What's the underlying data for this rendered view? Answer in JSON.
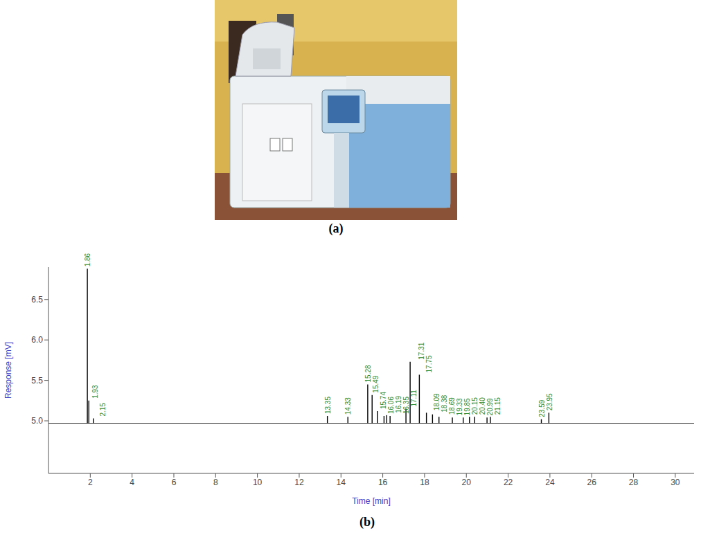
{
  "photo": {
    "caption": "(a)"
  },
  "chart_data": {
    "type": "chromatogram",
    "caption": "(b)",
    "x_label": "Time [min]",
    "y_label": "Response [mV]",
    "xlim": [
      0,
      30.9
    ],
    "xticks": [
      2,
      4,
      6,
      8,
      10,
      12,
      14,
      16,
      18,
      20,
      22,
      24,
      26,
      28,
      30
    ],
    "ylim": [
      4.35,
      6.9
    ],
    "yticks": [
      {
        "value": 5,
        "label": "5.0"
      },
      {
        "value": 5.5,
        "label": "5.5"
      },
      {
        "value": 6,
        "label": "6.0"
      },
      {
        "value": 6.5,
        "label": "6.5"
      }
    ],
    "baseline": 4.97,
    "color": "#000000",
    "x": [
      1.86,
      1.93,
      2.15,
      13.35,
      14.33,
      15.28,
      15.49,
      15.74,
      16.06,
      16.19,
      16.35,
      17.11,
      17.31,
      17.75,
      18.09,
      18.38,
      18.69,
      19.33,
      19.85,
      20.15,
      20.4,
      20.99,
      21.15,
      23.59,
      23.95
    ],
    "values": [
      6.88,
      5.25,
      5.03,
      5.06,
      5.05,
      5.45,
      5.32,
      5.12,
      5.06,
      5.07,
      5.06,
      5.15,
      5.73,
      5.57,
      5.1,
      5.08,
      5.05,
      5.04,
      5.04,
      5.05,
      5.05,
      5.04,
      5.05,
      5.02,
      5.1
    ],
    "peak_labels": [
      "1.86",
      "1.93",
      "2.15",
      "13.35",
      "14.33",
      "15.28",
      "15.49",
      "15.74",
      "16.06",
      "16.19",
      "16.35",
      "17.11",
      "17.31",
      "17.75",
      "18.09",
      "18.38",
      "18.69",
      "19.33",
      "19.85",
      "20.15",
      "20.40",
      "20.99",
      "21.15",
      "23.59",
      "23.95"
    ]
  }
}
